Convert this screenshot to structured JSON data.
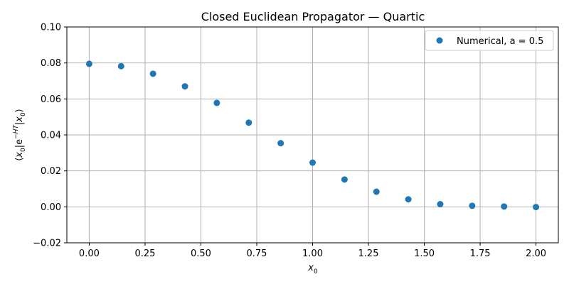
{
  "chart_data": {
    "type": "scatter",
    "title": "Closed Euclidean Propagator — Quartic",
    "xlabel": "x0",
    "ylabel": "⟨x0|e−HT|x0⟩",
    "xlim": [
      -0.1,
      2.1
    ],
    "ylim": [
      -0.02,
      0.1
    ],
    "xticks": [
      "0.00",
      "0.25",
      "0.50",
      "0.75",
      "1.00",
      "1.25",
      "1.50",
      "1.75",
      "2.00"
    ],
    "yticks": [
      "−0.02",
      "0.00",
      "0.02",
      "0.04",
      "0.06",
      "0.08",
      "0.10"
    ],
    "grid": true,
    "legend_position": "top-right",
    "color": "#1f77b4",
    "series": [
      {
        "name": "Numerical, a = 0.5",
        "x": [
          0.0,
          0.1429,
          0.2857,
          0.4286,
          0.5714,
          0.7143,
          0.8571,
          1.0,
          1.1429,
          1.2857,
          1.4286,
          1.5714,
          1.7143,
          1.8571,
          2.0
        ],
        "y": [
          0.0795,
          0.0782,
          0.074,
          0.067,
          0.0578,
          0.0468,
          0.0354,
          0.0246,
          0.0152,
          0.0084,
          0.0042,
          0.0015,
          0.0006,
          0.0002,
          -0.0001
        ]
      }
    ]
  }
}
